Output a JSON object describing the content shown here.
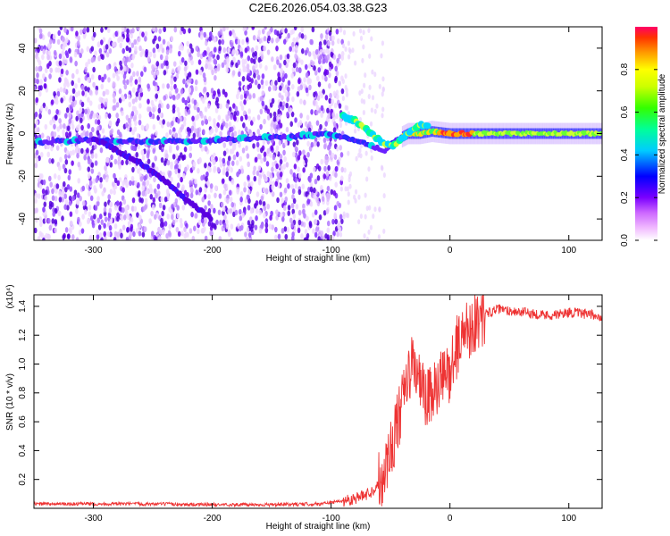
{
  "figure_title": "C2E6.2026.054.03.38.G23",
  "chart_data": [
    {
      "type": "heatmap",
      "title": "C2E6.2026.054.03.38.G23",
      "xlabel": "Height of straight line (km)",
      "ylabel": "Frequency (Hz)",
      "xlim": [
        -350,
        128
      ],
      "ylim": [
        -50,
        50
      ],
      "xticks": [
        -300,
        -200,
        -100,
        0,
        100
      ],
      "xtick_labels": [
        "-300",
        "-200",
        "-100",
        "0",
        "100"
      ],
      "yticks": [
        -40,
        -20,
        0,
        20,
        40
      ],
      "ytick_labels": [
        "-40",
        "-20",
        "0",
        "20",
        "40"
      ],
      "colorbar": {
        "label": "Normalized spectral amplitude",
        "range": [
          0,
          1
        ],
        "ticks": [
          0.0,
          0.2,
          0.4,
          0.6,
          0.8
        ],
        "tick_labels": [
          "0.0",
          "0.2",
          "0.4",
          "0.6",
          "0.8"
        ]
      },
      "features": [
        {
          "name": "carrier",
          "points": [
            [
              -345,
              -4
            ],
            [
              -300,
              -3
            ],
            [
              -250,
              -4
            ],
            [
              -200,
              -3
            ],
            [
              -150,
              -2
            ],
            [
              -100,
              0
            ],
            [
              -80,
              -3
            ],
            [
              -65,
              -6
            ],
            [
              -55,
              -8
            ],
            [
              -45,
              -3
            ],
            [
              -35,
              0
            ],
            [
              -25,
              0
            ],
            [
              -15,
              1
            ],
            [
              0,
              0
            ],
            [
              20,
              0
            ],
            [
              60,
              0
            ],
            [
              100,
              0
            ],
            [
              128,
              0
            ]
          ]
        },
        {
          "name": "upper-branch",
          "points": [
            [
              -90,
              8
            ],
            [
              -80,
              6
            ],
            [
              -70,
              2
            ],
            [
              -62,
              -2
            ],
            [
              -55,
              -5
            ],
            [
              -48,
              -6
            ],
            [
              -42,
              -3
            ],
            [
              -35,
              0
            ],
            [
              -25,
              4
            ],
            [
              -18,
              3
            ]
          ]
        },
        {
          "name": "drifting-line",
          "points": [
            [
              -300,
              -2
            ],
            [
              -280,
              -8
            ],
            [
              -260,
              -14
            ],
            [
              -240,
              -22
            ],
            [
              -220,
              -32
            ],
            [
              -200,
              -40
            ]
          ]
        }
      ]
    },
    {
      "type": "line",
      "xlabel": "Height of straight line (km)",
      "ylabel": "SNR (10 * v/v)",
      "scale_label": "(x10⁴)",
      "xlim": [
        -350,
        128
      ],
      "ylim": [
        0,
        1.48
      ],
      "xticks": [
        -300,
        -200,
        -100,
        0,
        100
      ],
      "xtick_labels": [
        "-300",
        "-200",
        "-100",
        "0",
        "100"
      ],
      "yticks": [
        0.2,
        0.4,
        0.6,
        0.8,
        1.0,
        1.2,
        1.4
      ],
      "ytick_labels": [
        "0.2",
        "0.4",
        "0.6",
        "0.8",
        "1.0",
        "1.2",
        "1.4"
      ],
      "color": "#ee3333",
      "series": [
        {
          "name": "SNR",
          "x": [
            -350,
            -300,
            -250,
            -200,
            -150,
            -110,
            -90,
            -75,
            -65,
            -58,
            -52,
            -47,
            -42,
            -38,
            -34,
            -30,
            -25,
            -20,
            -15,
            -10,
            -5,
            0,
            5,
            10,
            15,
            20,
            25,
            30,
            40,
            50,
            60,
            70,
            80,
            90,
            100,
            110,
            120,
            128
          ],
          "y": [
            0.03,
            0.03,
            0.03,
            0.025,
            0.025,
            0.03,
            0.05,
            0.08,
            0.12,
            0.2,
            0.35,
            0.5,
            0.65,
            0.8,
            0.95,
            1.0,
            0.85,
            0.75,
            0.78,
            0.85,
            0.9,
            0.95,
            1.1,
            1.2,
            1.25,
            1.28,
            1.32,
            1.35,
            1.38,
            1.37,
            1.36,
            1.35,
            1.34,
            1.34,
            1.36,
            1.35,
            1.34,
            1.33
          ]
        }
      ]
    }
  ]
}
